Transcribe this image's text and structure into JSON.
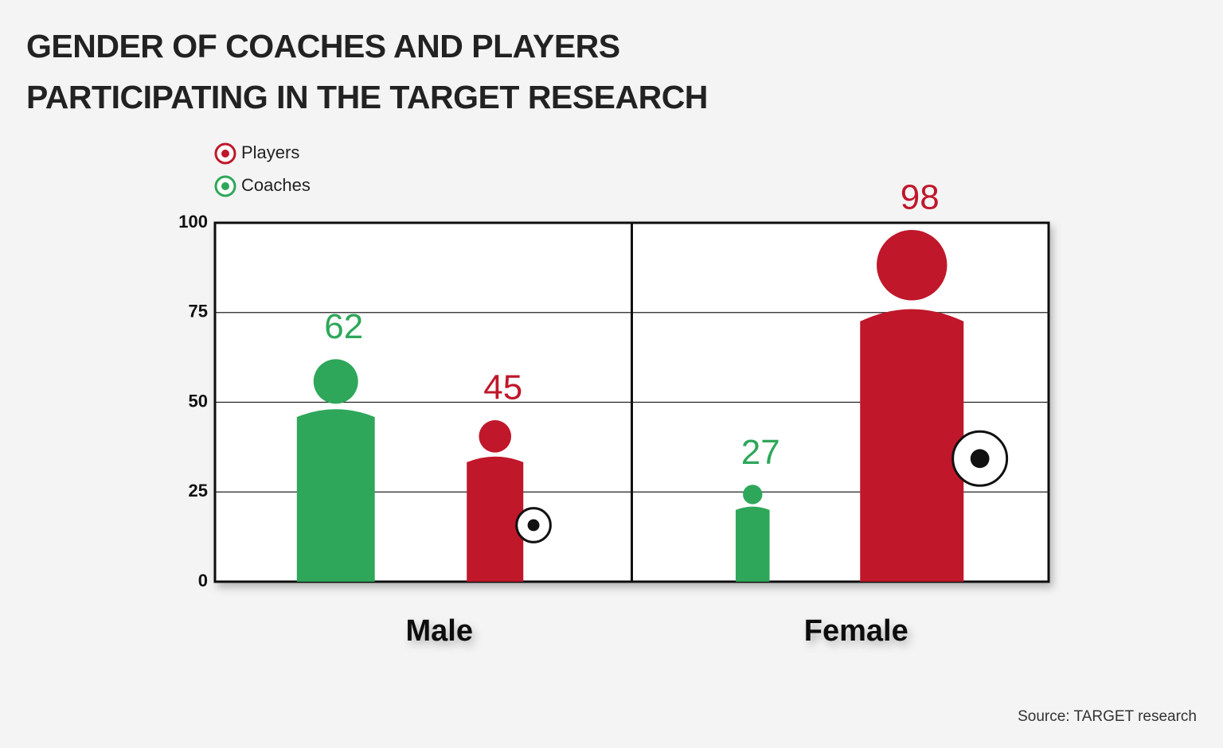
{
  "chart_data": {
    "type": "pictorial-bar",
    "title": "GENDER OF COACHES AND PLAYERS PARTICIPATING IN THE TARGET RESEARCH",
    "source": "Source: TARGET research",
    "categories": [
      "Male",
      "Female"
    ],
    "series": [
      {
        "name": "Players",
        "color": "#c0172b",
        "values": [
          45,
          98
        ]
      },
      {
        "name": "Coaches",
        "color": "#2ea75a",
        "values": [
          62,
          27
        ]
      }
    ],
    "ylim": [
      0,
      100
    ],
    "yticks": [
      0,
      25,
      50,
      75,
      100
    ],
    "grid": true
  }
}
